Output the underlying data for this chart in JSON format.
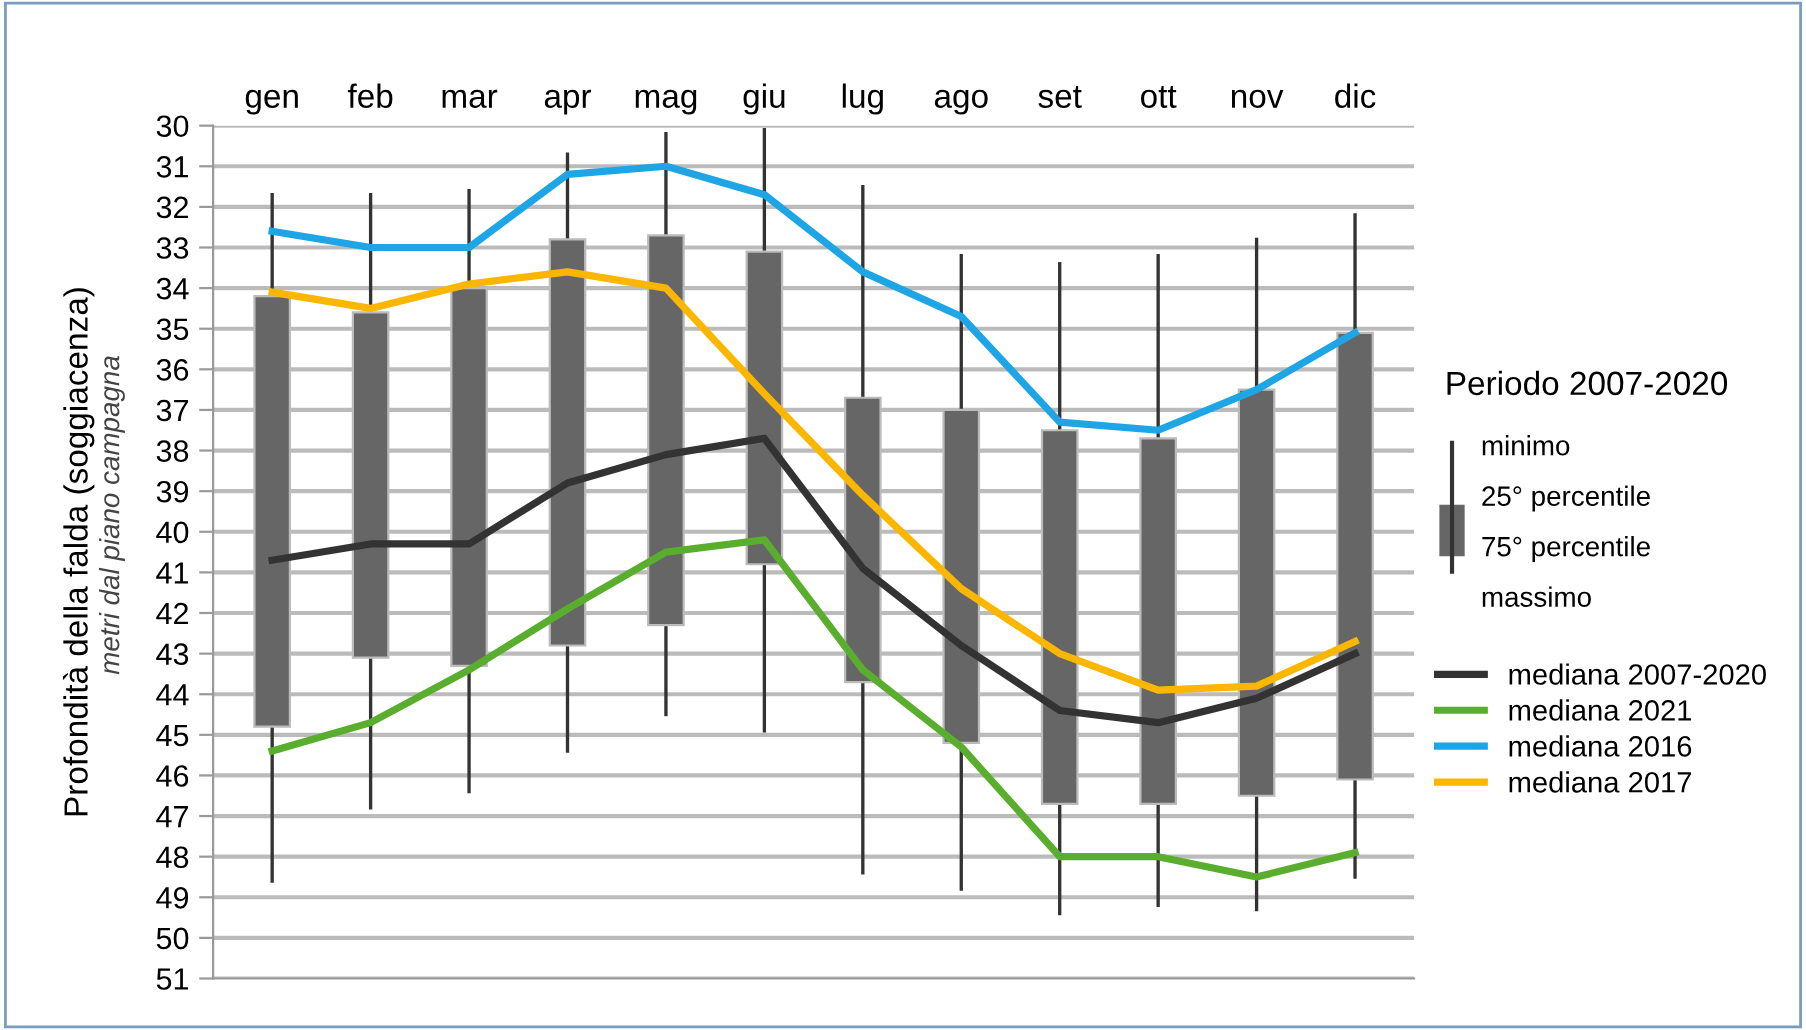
{
  "chart_data": {
    "type": "box",
    "ylabel": "Profondità della falda (soggiacenza)",
    "legend_title": "Periodo 2007-2020",
    "annotations": [
      "metri dal piano campagna",
      "minimo",
      "25° percentile",
      "75° percentile",
      "massimo"
    ],
    "categories": [
      "gen",
      "feb",
      "mar",
      "apr",
      "mag",
      "giu",
      "lug",
      "ago",
      "set",
      "ott",
      "nov",
      "dic"
    ],
    "color": "#666666",
    "boxes": [
      {
        "low": 31.7,
        "q1": 34.2,
        "q3": 44.8,
        "high": 48.6
      },
      {
        "low": 31.7,
        "q1": 34.6,
        "q3": 43.1,
        "high": 46.8
      },
      {
        "low": 31.6,
        "q1": 34.0,
        "q3": 43.3,
        "high": 46.4
      },
      {
        "low": 30.7,
        "q1": 32.8,
        "q3": 42.8,
        "high": 45.4
      },
      {
        "low": 30.2,
        "q1": 32.7,
        "q3": 42.3,
        "high": 44.5
      },
      {
        "low": 30.1,
        "q1": 33.1,
        "q3": 40.8,
        "high": 44.9
      },
      {
        "low": 31.5,
        "q1": 36.7,
        "q3": 43.7,
        "high": 48.4
      },
      {
        "low": 33.2,
        "q1": 37.0,
        "q3": 45.2,
        "high": 48.8
      },
      {
        "low": 33.4,
        "q1": 37.5,
        "q3": 46.7,
        "high": 49.4
      },
      {
        "low": 33.2,
        "q1": 37.7,
        "q3": 46.7,
        "high": 49.2
      },
      {
        "low": 32.8,
        "q1": 36.5,
        "q3": 46.5,
        "high": 49.3
      },
      {
        "low": 32.2,
        "q1": 35.1,
        "q3": 46.1,
        "high": 48.5
      }
    ],
    "series": [
      {
        "name": "mediana 2007-2020",
        "type": "line",
        "color": "#333333",
        "values": [
          40.7,
          40.3,
          40.3,
          38.8,
          38.1,
          37.7,
          40.9,
          42.8,
          44.4,
          44.7,
          44.1,
          43.0
        ]
      },
      {
        "name": "mediana 2021",
        "type": "line",
        "color": "#5aae2e",
        "values": [
          45.4,
          44.7,
          43.4,
          41.9,
          40.5,
          40.2,
          43.4,
          45.3,
          48.0,
          48.0,
          48.5,
          47.9
        ]
      },
      {
        "name": "mediana 2016",
        "type": "line",
        "color": "#1ea5e6",
        "values": [
          32.6,
          33.0,
          33.0,
          31.2,
          31.0,
          31.7,
          33.6,
          34.7,
          37.3,
          37.5,
          36.5,
          35.1
        ]
      },
      {
        "name": "mediana 2017",
        "type": "line",
        "color": "#fbb700",
        "values": [
          34.1,
          34.5,
          33.9,
          33.6,
          34.0,
          36.6,
          39.1,
          41.4,
          43.0,
          43.9,
          43.8,
          42.7
        ]
      }
    ],
    "ylim": [
      51,
      30
    ],
    "yticks": [
      30,
      31,
      32,
      33,
      34,
      35,
      36,
      37,
      38,
      39,
      40,
      41,
      42,
      43,
      44,
      45,
      46,
      47,
      48,
      49,
      50,
      51
    ],
    "grid": "y",
    "legend": "right",
    "marker": "none",
    "line_style": "solid"
  }
}
